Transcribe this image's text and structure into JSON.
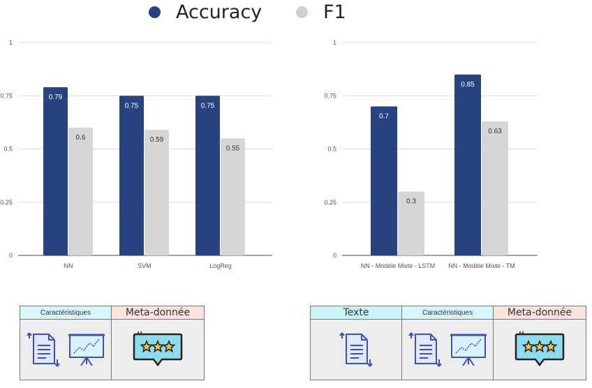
{
  "legend": {
    "items": [
      {
        "label": "Accuracy",
        "color": "#274380"
      },
      {
        "label": "F1",
        "color": "#c9ced8"
      }
    ]
  },
  "chart_data": [
    {
      "type": "bar",
      "categories": [
        "NN",
        "SVM",
        "LogReg"
      ],
      "series": [
        {
          "name": "Accuracy",
          "values": [
            0.79,
            0.75,
            0.75
          ],
          "color": "#274380"
        },
        {
          "name": "F1",
          "values": [
            0.6,
            0.59,
            0.55
          ],
          "color": "#d6d6d6"
        }
      ],
      "yticks": [
        "0",
        "0.25",
        "0.5",
        "0.75",
        "1"
      ],
      "ylim": [
        0,
        1
      ],
      "grid": true
    },
    {
      "type": "bar",
      "categories": [
        "NN - Modèle Mixte - LSTM",
        "NN - Modèle Mixte - TM"
      ],
      "series": [
        {
          "name": "Accuracy",
          "values": [
            0.7,
            0.85
          ],
          "color": "#274380"
        },
        {
          "name": "F1",
          "values": [
            0.3,
            0.63
          ],
          "color": "#d6d6d6"
        }
      ],
      "yticks": [
        "0",
        "0.25",
        "0.5",
        "0.75",
        "1"
      ],
      "ylim": [
        0,
        1
      ],
      "grid": true
    }
  ],
  "feature_panels": {
    "left": {
      "boxes": [
        {
          "title": "Caractéristiques",
          "header_color": "#d6f6fb",
          "icons": [
            "document-icon",
            "presentation-chart-icon"
          ]
        },
        {
          "title": "Meta-donnée",
          "header_color": "#fbe3dd",
          "icons": [
            "rating-stars-icon"
          ]
        }
      ]
    },
    "right": {
      "boxes": [
        {
          "title": "Texte",
          "header_color": "#c8f6f8",
          "icons": [
            "document-icon"
          ]
        },
        {
          "title": "Caractéristiques",
          "header_color": "#d6f6fb",
          "icons": [
            "document-icon",
            "presentation-chart-icon"
          ]
        },
        {
          "title": "Meta-donnée",
          "header_color": "#fbe3dd",
          "icons": [
            "rating-stars-icon"
          ]
        }
      ]
    }
  }
}
